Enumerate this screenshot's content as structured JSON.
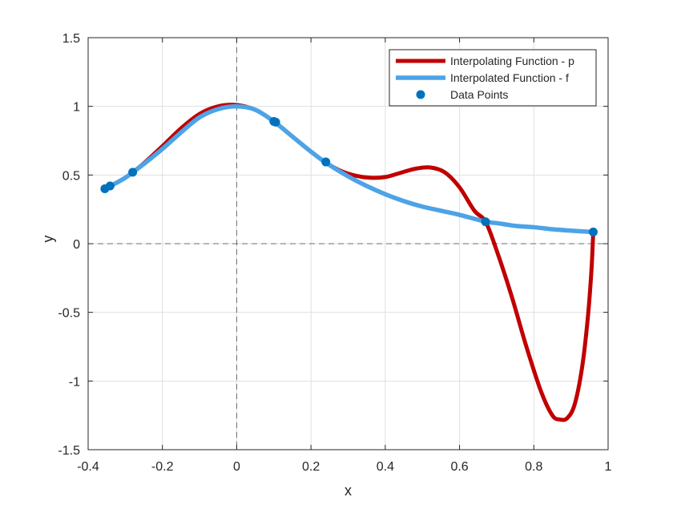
{
  "chart_data": {
    "type": "line",
    "xlabel": "x",
    "ylabel": "y",
    "xlim": [
      -0.4,
      1.0
    ],
    "ylim": [
      -1.5,
      1.5
    ],
    "xticks": [
      -0.4,
      -0.2,
      0,
      0.2,
      0.4,
      0.6,
      0.8,
      1
    ],
    "xtick_labels": [
      "-0.4",
      "-0.2",
      "0",
      "0.2",
      "0.4",
      "0.6",
      "0.8",
      "1"
    ],
    "yticks": [
      -1.5,
      -1,
      -0.5,
      0,
      0.5,
      1,
      1.5
    ],
    "ytick_labels": [
      "-1.5",
      "-1",
      "-0.5",
      "0",
      "0.5",
      "1",
      "1.5"
    ],
    "grid": true,
    "legend_position": "top-right",
    "reference_lines": {
      "x": 0,
      "y": 0,
      "style": "dashed"
    },
    "series": [
      {
        "name": "Interpolating Function - p",
        "kind": "line",
        "color": "#C00000",
        "x": [
          -0.358,
          -0.34,
          -0.3,
          -0.28,
          -0.25,
          -0.2,
          -0.15,
          -0.1,
          -0.05,
          0,
          0.05,
          0.1,
          0.15,
          0.2,
          0.24,
          0.28,
          0.32,
          0.36,
          0.4,
          0.44,
          0.48,
          0.52,
          0.56,
          0.6,
          0.64,
          0.67,
          0.7,
          0.74,
          0.78,
          0.82,
          0.85,
          0.87,
          0.89,
          0.91,
          0.93,
          0.945,
          0.955,
          0.96
        ],
        "y": [
          0.4,
          0.42,
          0.48,
          0.52,
          0.585,
          0.71,
          0.84,
          0.945,
          1.0,
          1.01,
          0.975,
          0.89,
          0.78,
          0.67,
          0.59,
          0.53,
          0.495,
          0.48,
          0.485,
          0.515,
          0.545,
          0.555,
          0.52,
          0.41,
          0.24,
          0.16,
          -0.05,
          -0.38,
          -0.75,
          -1.08,
          -1.25,
          -1.28,
          -1.27,
          -1.17,
          -0.9,
          -0.55,
          -0.2,
          0.085
        ]
      },
      {
        "name": "Interpolated Function - f",
        "kind": "line",
        "color": "#4DA3E6",
        "x": [
          -0.358,
          -0.34,
          -0.3,
          -0.28,
          -0.25,
          -0.2,
          -0.15,
          -0.1,
          -0.05,
          0,
          0.05,
          0.1,
          0.15,
          0.2,
          0.24,
          0.3,
          0.35,
          0.4,
          0.45,
          0.5,
          0.55,
          0.6,
          0.67,
          0.7,
          0.75,
          0.8,
          0.85,
          0.9,
          0.96
        ],
        "y": [
          0.4,
          0.42,
          0.48,
          0.52,
          0.58,
          0.69,
          0.81,
          0.92,
          0.98,
          1.0,
          0.975,
          0.89,
          0.78,
          0.67,
          0.59,
          0.49,
          0.42,
          0.36,
          0.31,
          0.27,
          0.24,
          0.21,
          0.16,
          0.15,
          0.13,
          0.12,
          0.105,
          0.095,
          0.085
        ]
      },
      {
        "name": "Data Points",
        "kind": "scatter",
        "color": "#0072BD",
        "x": [
          -0.355,
          -0.341,
          -0.28,
          0.1,
          0.105,
          0.24,
          0.67,
          0.96
        ],
        "y": [
          0.4,
          0.42,
          0.52,
          0.89,
          0.885,
          0.595,
          0.16,
          0.085
        ]
      }
    ]
  }
}
